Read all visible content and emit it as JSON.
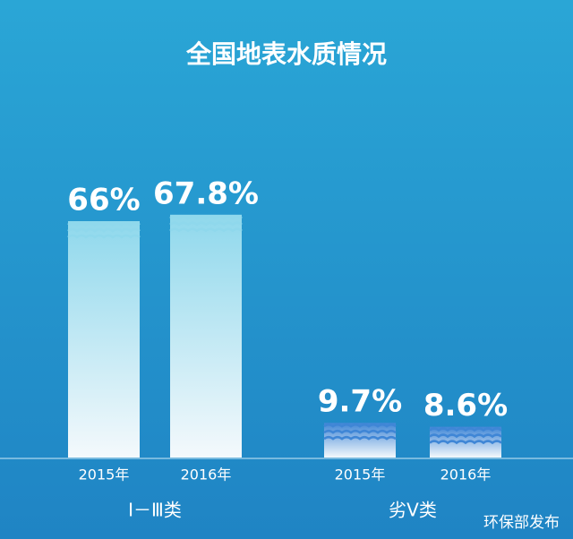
{
  "chart_data": {
    "type": "bar",
    "title": "全国地表水质情况",
    "groups": [
      {
        "name": "Ⅰ－Ⅲ类",
        "color": "#8fd8ec",
        "categories": [
          "2015年",
          "2016年"
        ],
        "values": [
          66,
          67.8
        ],
        "value_labels": [
          "66%",
          "67.8%"
        ]
      },
      {
        "name": "劣Ⅴ类",
        "color": "#3f86d6",
        "categories": [
          "2015年",
          "2016年"
        ],
        "values": [
          9.7,
          8.6
        ],
        "value_labels": [
          "9.7%",
          "8.6%"
        ]
      }
    ],
    "source": "环保部发布"
  }
}
